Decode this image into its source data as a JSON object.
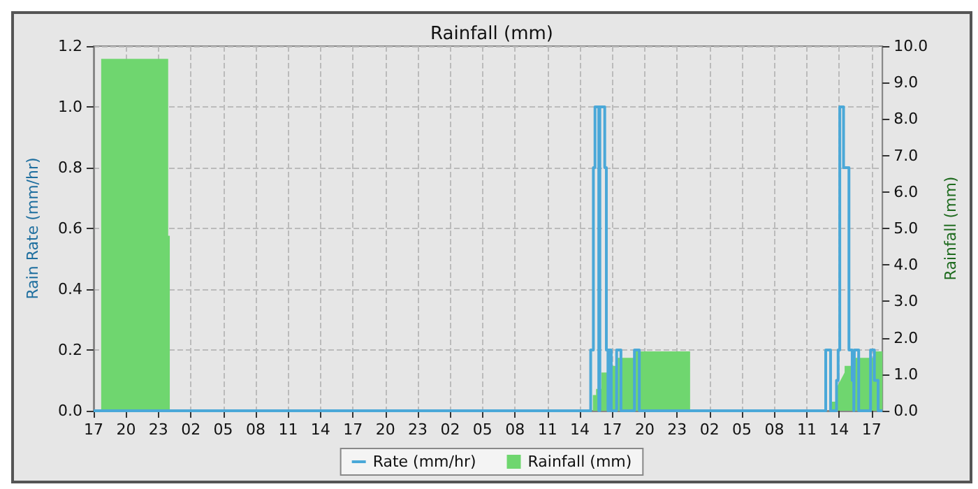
{
  "chart_data": {
    "type": "step",
    "title": "Rainfall (mm)",
    "ylabel": "Rain Rate (mm/hr)",
    "y2label": "Rainfall (mm)",
    "xlim": [
      "--01-01T17:00",
      "--01-04T18:00"
    ],
    "xticks": [
      {
        "value": "--01-01T17:00",
        "label": "17"
      },
      {
        "value": "--01-01T20:00",
        "label": "20"
      },
      {
        "value": "--01-01T23:00",
        "label": "23"
      },
      {
        "value": "--01-02T02:00",
        "label": "02"
      },
      {
        "value": "--01-02T05:00",
        "label": "05"
      },
      {
        "value": "--01-02T08:00",
        "label": "08"
      },
      {
        "value": "--01-02T11:00",
        "label": "11"
      },
      {
        "value": "--01-02T14:00",
        "label": "14"
      },
      {
        "value": "--01-02T17:00",
        "label": "17"
      },
      {
        "value": "--01-02T20:00",
        "label": "20"
      },
      {
        "value": "--01-02T23:00",
        "label": "23"
      },
      {
        "value": "--01-03T02:00",
        "label": "02"
      },
      {
        "value": "--01-03T05:00",
        "label": "05"
      },
      {
        "value": "--01-03T08:00",
        "label": "08"
      },
      {
        "value": "--01-03T11:00",
        "label": "11"
      },
      {
        "value": "--01-03T14:00",
        "label": "14"
      },
      {
        "value": "--01-03T17:00",
        "label": "17"
      },
      {
        "value": "--01-03T20:00",
        "label": "20"
      },
      {
        "value": "--01-03T23:00",
        "label": "23"
      },
      {
        "value": "--01-04T02:00",
        "label": "02"
      },
      {
        "value": "--01-04T05:00",
        "label": "05"
      },
      {
        "value": "--01-04T08:00",
        "label": "08"
      },
      {
        "value": "--01-04T11:00",
        "label": "11"
      },
      {
        "value": "--01-04T14:00",
        "label": "14"
      },
      {
        "value": "--01-04T17:00",
        "label": "17"
      }
    ],
    "ylim": [
      0,
      1.2
    ],
    "yticks": [
      {
        "value": 0,
        "label": "0.0"
      },
      {
        "value": 0.2,
        "label": "0.2"
      },
      {
        "value": 0.4,
        "label": "0.4"
      },
      {
        "value": 0.6,
        "label": "0.6"
      },
      {
        "value": 0.8,
        "label": "0.8"
      },
      {
        "value": 1,
        "label": "1.0"
      },
      {
        "value": 1.2,
        "label": "1.2"
      }
    ],
    "y2lim": [
      0,
      10
    ],
    "y2ticks": [
      {
        "value": 0,
        "label": "0.0"
      },
      {
        "value": 1,
        "label": "1.0"
      },
      {
        "value": 2,
        "label": "2.0"
      },
      {
        "value": 3,
        "label": "3.0"
      },
      {
        "value": 4,
        "label": "4.0"
      },
      {
        "value": 5,
        "label": "5.0"
      },
      {
        "value": 6,
        "label": "6.0"
      },
      {
        "value": 7,
        "label": "7.0"
      },
      {
        "value": 8,
        "label": "8.0"
      },
      {
        "value": 9,
        "label": "9.0"
      },
      {
        "value": 10,
        "label": "10.0"
      }
    ],
    "grid": true,
    "legend": "bottom",
    "marker": "none",
    "line_style": "solid",
    "series": [
      {
        "name": "Rainfall (mm)",
        "type": "area",
        "axis": "y2",
        "color": "#6fd66f",
        "x": [
          "--01-01T17:42",
          "--01-01T17:42",
          "--01-01T23:54",
          "--01-01T23:54",
          "--01-02T00:03",
          "--01-02T00:03",
          "--01-03T15:12",
          "--01-03T15:12",
          "--01-03T15:30",
          "--01-03T15:30",
          "--01-03T16:00",
          "--01-03T16:00",
          "--01-03T16:42",
          "--01-03T16:42",
          "--01-03T17:18",
          "--01-03T17:18",
          "--01-03T19:00",
          "--01-03T19:00",
          "--01-04T00:12",
          "--01-04T00:12",
          "--01-04T13:12",
          "--01-04T13:12",
          "--01-04T13:42",
          "--01-04T13:42",
          "--01-04T14:30",
          "--01-04T14:30",
          "--01-04T15:06",
          "--01-04T15:06",
          "--01-04T15:48",
          "--01-04T15:48",
          "--01-04T17:12",
          "--01-04T17:12",
          "--01-04T18:00"
        ],
        "values": [
          0,
          9.65,
          9.65,
          4.8,
          4.8,
          0,
          0,
          0.43,
          0.43,
          0.6,
          0.6,
          1.05,
          1.05,
          1.23,
          1.23,
          1.45,
          1.45,
          1.63,
          1.63,
          0,
          0,
          0.25,
          0.25,
          0.6,
          1.05,
          1.23,
          1.23,
          1.45,
          1.45,
          1.45,
          1.45,
          1.63,
          1.63
        ]
      },
      {
        "name": "Rate (mm/hr)",
        "color": "#4aa8d8",
        "x": [
          "--01-01T17:00",
          "--01-03T15:00",
          "--01-03T15:15",
          "--01-03T15:24",
          "--01-03T15:45",
          "--01-03T15:51",
          "--01-03T16:18",
          "--01-03T16:27",
          "--01-03T16:36",
          "--01-03T16:42",
          "--01-03T16:54",
          "--01-03T17:24",
          "--01-03T17:48",
          "--01-03T19:03",
          "--01-03T19:30",
          "--01-04T12:45",
          "--01-04T13:12",
          "--01-04T13:45",
          "--01-04T13:54",
          "--01-04T14:03",
          "--01-04T14:24",
          "--01-04T14:54",
          "--01-04T15:12",
          "--01-04T15:21",
          "--01-04T15:24",
          "--01-04T15:48",
          "--01-04T16:54",
          "--01-04T17:15",
          "--01-04T17:36",
          "--01-04T18:00"
        ],
        "values": [
          0,
          0.2,
          0.8,
          1.0,
          0,
          1.0,
          0.8,
          0.2,
          0,
          0.2,
          0,
          0.2,
          0,
          0.2,
          0,
          0.2,
          0,
          0.1,
          0.2,
          1.0,
          0.8,
          0.2,
          0.1,
          0,
          0.2,
          0,
          0.2,
          0.1,
          0,
          0
        ]
      }
    ]
  }
}
